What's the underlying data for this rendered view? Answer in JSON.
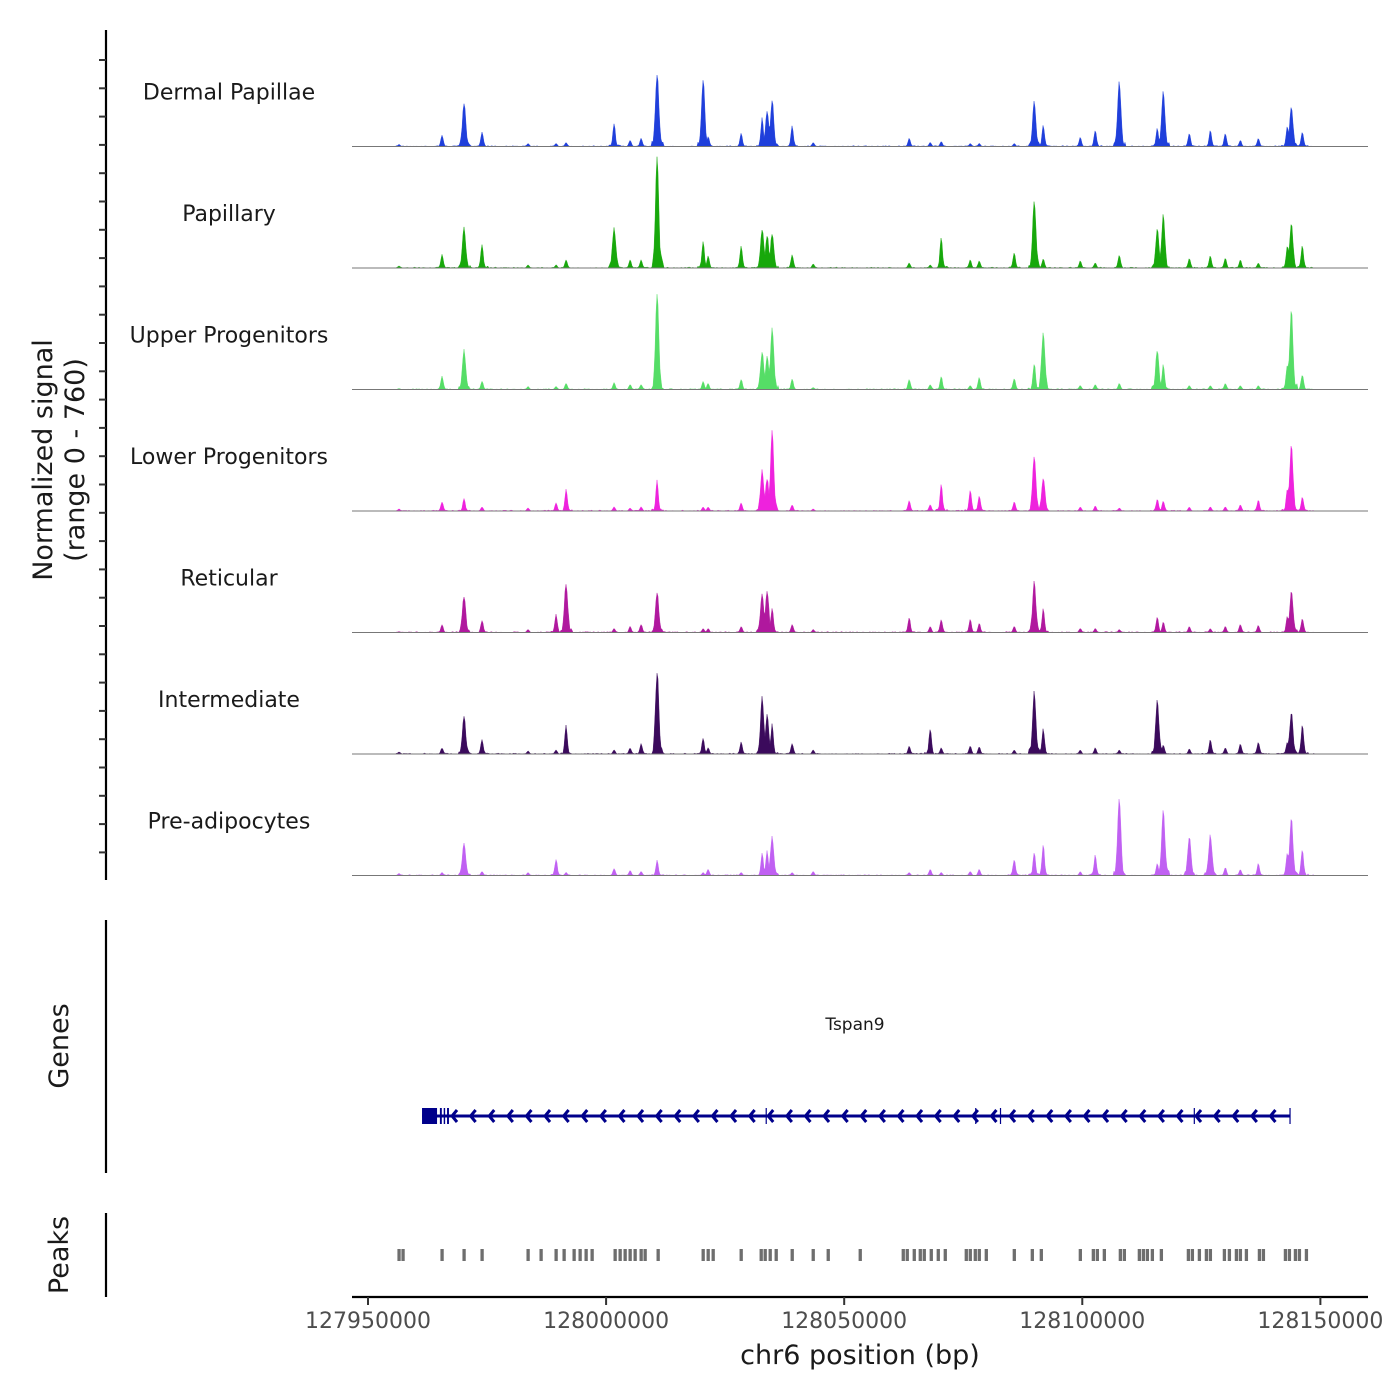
{
  "chart_data": {
    "type": "area",
    "title": "",
    "xlabel": "chr6 position (bp)",
    "ylabel": "Normalized signal",
    "ylabel_range": "(range 0 - 760)",
    "xlim": [
      127946640,
      128160000
    ],
    "ylim": [
      0,
      760
    ],
    "x_ticks": [
      127950000,
      128000000,
      128050000,
      128100000,
      128150000
    ],
    "x_tick_labels": [
      "127950000",
      "128000000",
      "128050000",
      "128100000",
      "128150000"
    ],
    "sites": [
      127956512,
      127965546,
      127970168,
      127973950,
      127983613,
      127989496,
      127991597,
      128001680,
      128005042,
      128007353,
      128010713,
      128020378,
      128021429,
      128028361,
      128032772,
      128033822,
      128034872,
      128039076,
      128043487,
      128063653,
      128068065,
      128070376,
      128076471,
      128078361,
      128085714,
      128089913,
      128091804,
      128099580,
      128102728,
      128107770,
      128115753,
      128117014,
      128122476,
      128126891,
      128130039,
      128133193,
      128136971,
      128143064,
      128143907,
      128146215
    ],
    "series": [
      {
        "name": "Dermal Papillae",
        "color": "#1f3fdb",
        "values": [
          13,
          69,
          270,
          88,
          19,
          19,
          25,
          144,
          38,
          50,
          458,
          414,
          63,
          82,
          176,
          226,
          289,
          126,
          25,
          50,
          25,
          31,
          19,
          19,
          19,
          276,
          132,
          57,
          100,
          408,
          113,
          339,
          82,
          100,
          82,
          38,
          50,
          126,
          245,
          88
        ]
      },
      {
        "name": "Papillary",
        "color": "#17a80b",
        "values": [
          13,
          82,
          251,
          144,
          19,
          19,
          50,
          251,
          50,
          50,
          678,
          163,
          75,
          138,
          239,
          201,
          214,
          82,
          25,
          31,
          19,
          195,
          50,
          44,
          94,
          421,
          57,
          44,
          31,
          82,
          239,
          327,
          57,
          75,
          63,
          50,
          31,
          138,
          270,
          138
        ]
      },
      {
        "name": "Upper Progenitors",
        "color": "#55dd66",
        "values": [
          6,
          82,
          245,
          50,
          19,
          19,
          38,
          44,
          31,
          31,
          584,
          50,
          38,
          63,
          232,
          207,
          389,
          63,
          13,
          63,
          31,
          82,
          25,
          75,
          69,
          163,
          358,
          25,
          31,
          38,
          245,
          157,
          25,
          25,
          38,
          25,
          25,
          157,
          490,
          94
        ]
      },
      {
        "name": "Lower Progenitors",
        "color": "#ee22dd",
        "values": [
          13,
          57,
          75,
          25,
          19,
          50,
          132,
          25,
          19,
          25,
          188,
          25,
          25,
          50,
          251,
          201,
          490,
          38,
          13,
          63,
          38,
          163,
          126,
          94,
          57,
          333,
          207,
          25,
          31,
          19,
          75,
          63,
          25,
          25,
          25,
          38,
          69,
          138,
          414,
          88
        ]
      },
      {
        "name": "Reticular",
        "color": "#b0189e",
        "values": [
          6,
          50,
          226,
          75,
          19,
          113,
          308,
          25,
          38,
          50,
          251,
          25,
          25,
          38,
          232,
          264,
          151,
          50,
          19,
          94,
          38,
          82,
          82,
          57,
          38,
          320,
          151,
          25,
          25,
          19,
          100,
          63,
          38,
          25,
          38,
          50,
          44,
          100,
          251,
          88
        ]
      },
      {
        "name": "Intermediate",
        "color": "#3b0a5c",
        "values": [
          13,
          38,
          232,
          88,
          19,
          25,
          176,
          25,
          38,
          63,
          521,
          100,
          38,
          75,
          358,
          239,
          188,
          63,
          25,
          50,
          157,
          38,
          50,
          44,
          25,
          389,
          157,
          25,
          38,
          25,
          327,
          57,
          31,
          88,
          38,
          63,
          75,
          75,
          257,
          182
        ]
      },
      {
        "name": "Pre-adipocytes",
        "color": "#c060f2",
        "values": [
          13,
          19,
          201,
          25,
          19,
          100,
          19,
          44,
          31,
          25,
          94,
          19,
          38,
          19,
          138,
          151,
          239,
          19,
          25,
          19,
          38,
          19,
          25,
          38,
          100,
          144,
          188,
          25,
          126,
          471,
          75,
          396,
          239,
          251,
          50,
          38,
          75,
          138,
          352,
          163
        ]
      }
    ],
    "genes_panel": {
      "label": "Genes",
      "gene": {
        "name": "Tspan9",
        "start": 127961345,
        "end": 128143697,
        "strand": "-",
        "color": "#00008b",
        "exons": [
          [
            127961345,
            127964500
          ],
          [
            127965100,
            127965500
          ],
          [
            127965900,
            127966200
          ],
          [
            127966600,
            127967000
          ],
          [
            128033500,
            128033700
          ],
          [
            128077500,
            128077700
          ],
          [
            128082700,
            128082900
          ],
          [
            128123400,
            128123600
          ],
          [
            128143500,
            128143697
          ]
        ]
      }
    },
    "peaks_panel": {
      "label": "Peaks",
      "color": "#6e6e6e",
      "peaks": [
        127956512,
        127957353,
        127965546,
        127970168,
        127973950,
        127983613,
        127986344,
        127989496,
        127991176,
        127993277,
        127994538,
        127995798,
        127997059,
        128001891,
        128002941,
        128003992,
        128005042,
        128006092,
        128007353,
        128008193,
        128010924,
        128020378,
        128021429,
        128022479,
        128028361,
        128032563,
        128033403,
        128034454,
        128035714,
        128039076,
        128043487,
        128046639,
        128053361,
        128062395,
        128063235,
        128064706,
        128065966,
        128066807,
        128068277,
        128069748,
        128071218,
        128075630,
        128076471,
        128077521,
        128078361,
        128079832,
        128085714,
        128089496,
        128091387,
        128099580,
        128102311,
        128103151,
        128104622,
        128107983,
        128108824,
        128111975,
        128112815,
        128113655,
        128114706,
        128116597,
        128122269,
        128123109,
        128124580,
        128126050,
        128126891,
        128129832,
        128130882,
        128132353,
        128133193,
        128134454,
        128137185,
        128138025,
        128142647,
        128143487,
        128144748,
        128145588,
        128147059
      ]
    }
  }
}
